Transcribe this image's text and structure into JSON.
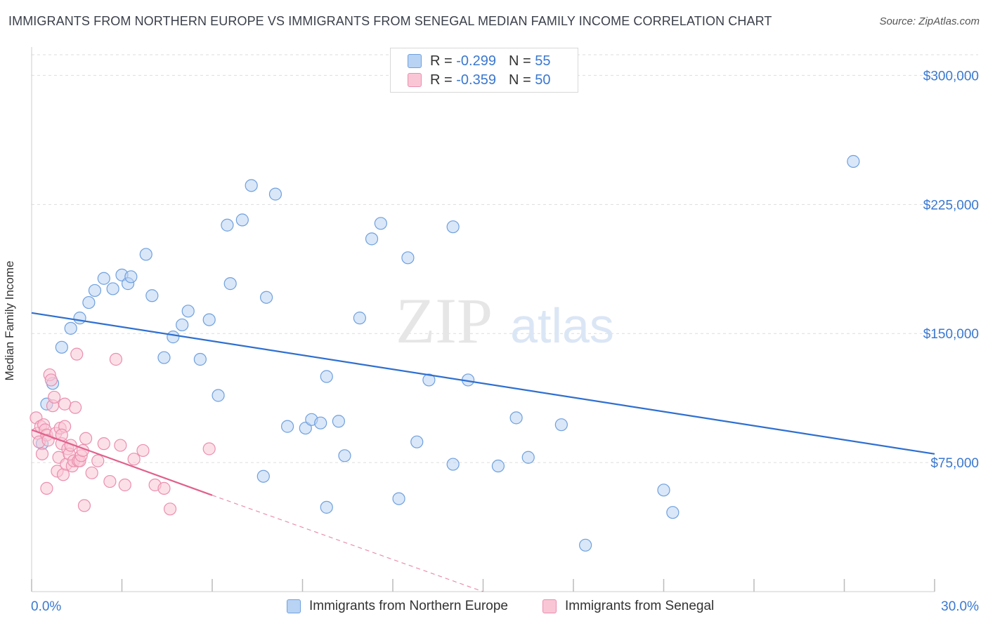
{
  "title": "IMMIGRANTS FROM NORTHERN EUROPE VS IMMIGRANTS FROM SENEGAL MEDIAN FAMILY INCOME CORRELATION CHART",
  "source": "Source: ZipAtlas.com",
  "watermark": {
    "zip": "ZIP",
    "atlas": "atlas"
  },
  "legend_top": [
    {
      "r_label": "R =",
      "r_value": "-0.299",
      "n_label": "N =",
      "n_value": "55"
    },
    {
      "r_label": "R =",
      "r_value": "-0.359",
      "n_label": "N =",
      "n_value": "50"
    }
  ],
  "colors": {
    "blue_fill": "#b9d3f4",
    "blue_stroke": "#6fa0dd",
    "blue_line": "#2f6fcf",
    "pink_fill": "#f9c6d6",
    "pink_stroke": "#ea8fae",
    "pink_line": "#e0608c",
    "tick_label": "#3a78d0",
    "grid": "#dddddd"
  },
  "chart_data": {
    "type": "scatter",
    "title": "IMMIGRANTS FROM NORTHERN EUROPE VS IMMIGRANTS FROM SENEGAL MEDIAN FAMILY INCOME CORRELATION CHART",
    "xlabel": "",
    "ylabel": "Median Family Income",
    "xlim": [
      0,
      30
    ],
    "ylim": [
      0,
      312000
    ],
    "x_tick_labels": {
      "left": "0.0%",
      "right": "30.0%"
    },
    "y_ticks": [
      {
        "value": 75000,
        "label": "$75,000"
      },
      {
        "value": 150000,
        "label": "$150,000"
      },
      {
        "value": 225000,
        "label": "$225,000"
      },
      {
        "value": 300000,
        "label": "$300,000"
      }
    ],
    "series": [
      {
        "name": "Immigrants from Northern Europe",
        "color": "blue",
        "R": -0.299,
        "N": 55,
        "trend": {
          "x0": 0,
          "y0": 162000,
          "x1": 30,
          "y1": 80000
        },
        "points": [
          [
            0.5,
            109000
          ],
          [
            0.7,
            121000
          ],
          [
            1.0,
            142000
          ],
          [
            1.3,
            153000
          ],
          [
            1.6,
            159000
          ],
          [
            1.9,
            168000
          ],
          [
            2.1,
            175000
          ],
          [
            2.4,
            182000
          ],
          [
            2.7,
            176000
          ],
          [
            3.0,
            184000
          ],
          [
            3.2,
            179000
          ],
          [
            3.3,
            183000
          ],
          [
            3.8,
            196000
          ],
          [
            4.0,
            172000
          ],
          [
            4.4,
            136000
          ],
          [
            4.7,
            148000
          ],
          [
            5.0,
            155000
          ],
          [
            5.2,
            163000
          ],
          [
            5.6,
            135000
          ],
          [
            5.9,
            158000
          ],
          [
            6.2,
            114000
          ],
          [
            6.5,
            213000
          ],
          [
            6.6,
            179000
          ],
          [
            7.0,
            216000
          ],
          [
            7.3,
            236000
          ],
          [
            7.7,
            67000
          ],
          [
            7.8,
            171000
          ],
          [
            8.1,
            231000
          ],
          [
            8.5,
            96000
          ],
          [
            9.1,
            95000
          ],
          [
            9.3,
            100000
          ],
          [
            9.6,
            98000
          ],
          [
            9.8,
            125000
          ],
          [
            9.8,
            49000
          ],
          [
            10.2,
            99000
          ],
          [
            10.4,
            79000
          ],
          [
            10.9,
            159000
          ],
          [
            11.3,
            205000
          ],
          [
            11.6,
            214000
          ],
          [
            12.2,
            54000
          ],
          [
            12.5,
            194000
          ],
          [
            12.8,
            87000
          ],
          [
            13.2,
            123000
          ],
          [
            14.0,
            212000
          ],
          [
            14.0,
            74000
          ],
          [
            14.5,
            123000
          ],
          [
            15.5,
            73000
          ],
          [
            16.1,
            101000
          ],
          [
            16.5,
            78000
          ],
          [
            17.6,
            97000
          ],
          [
            18.4,
            27000
          ],
          [
            21.0,
            59000
          ],
          [
            21.3,
            46000
          ],
          [
            27.3,
            250000
          ],
          [
            0.35,
            86000
          ]
        ]
      },
      {
        "name": "Immigrants from Senegal",
        "color": "pink",
        "R": -0.359,
        "N": 50,
        "trend": {
          "x0": 0,
          "y0": 94000,
          "x1": 6.0,
          "y1": 56000,
          "dash_to": {
            "x": 15.0,
            "y": 0
          }
        },
        "points": [
          [
            0.15,
            101000
          ],
          [
            0.2,
            92000
          ],
          [
            0.25,
            87000
          ],
          [
            0.3,
            96000
          ],
          [
            0.35,
            80000
          ],
          [
            0.4,
            97000
          ],
          [
            0.45,
            94000
          ],
          [
            0.5,
            91000
          ],
          [
            0.55,
            88000
          ],
          [
            0.6,
            126000
          ],
          [
            0.65,
            123000
          ],
          [
            0.7,
            108000
          ],
          [
            0.75,
            113000
          ],
          [
            0.8,
            92000
          ],
          [
            0.85,
            70000
          ],
          [
            0.9,
            78000
          ],
          [
            0.95,
            95000
          ],
          [
            1.0,
            86000
          ],
          [
            1.05,
            68000
          ],
          [
            1.1,
            96000
          ],
          [
            1.15,
            74000
          ],
          [
            1.2,
            83000
          ],
          [
            1.25,
            80000
          ],
          [
            1.3,
            85000
          ],
          [
            1.35,
            73000
          ],
          [
            1.4,
            76000
          ],
          [
            1.45,
            107000
          ],
          [
            1.5,
            138000
          ],
          [
            1.55,
            76000
          ],
          [
            1.6,
            76000
          ],
          [
            1.65,
            79000
          ],
          [
            1.7,
            82000
          ],
          [
            1.75,
            50000
          ],
          [
            1.8,
            89000
          ],
          [
            2.0,
            69000
          ],
          [
            2.2,
            76000
          ],
          [
            2.4,
            86000
          ],
          [
            2.6,
            64000
          ],
          [
            2.8,
            135000
          ],
          [
            2.95,
            85000
          ],
          [
            3.1,
            62000
          ],
          [
            3.4,
            77000
          ],
          [
            3.7,
            82000
          ],
          [
            4.1,
            62000
          ],
          [
            4.4,
            60000
          ],
          [
            4.6,
            48000
          ],
          [
            5.9,
            83000
          ],
          [
            1.0,
            91000
          ],
          [
            0.5,
            60000
          ],
          [
            1.1,
            109000
          ]
        ]
      }
    ]
  }
}
